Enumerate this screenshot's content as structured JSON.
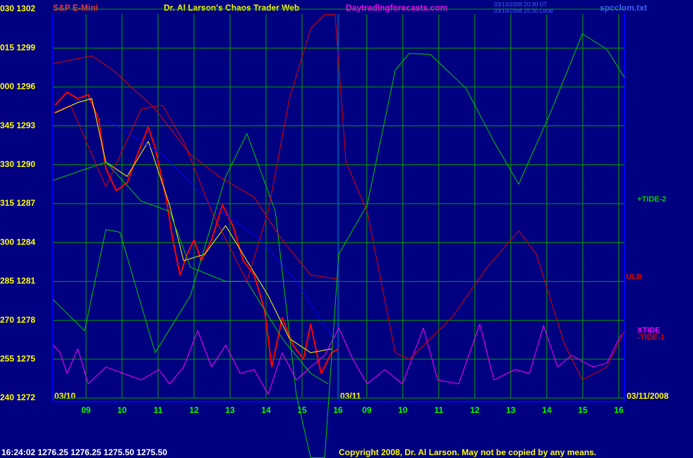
{
  "chart_data": {
    "type": "line",
    "title": "Dr. Al Larson's Chaos Trader Web",
    "header": {
      "symbol": "S&P E-Mini",
      "site": "Daytradingforecasts.com",
      "time_ut": "03/10/2008 20:30 UT",
      "time_local": "03/10/2008 15:30 Local",
      "file": "spcclom.txt"
    },
    "annotations": [
      "03/10",
      "03/11",
      "03/11/2008"
    ],
    "status": "16:24:02  1276.25 1276.25 1275.50 1275.50",
    "copyright": "Copyright 2008, Dr. Al Larson. May not be copied by any means.",
    "xlim": [
      8.08,
      23.96
    ],
    "xticks": [
      {
        "value": 9,
        "label": "09"
      },
      10,
      11,
      12,
      13,
      14,
      15,
      16,
      {
        "value": 16.8,
        "label": "09"
      },
      {
        "value": 17.8,
        "label": "10"
      },
      {
        "value": 18.8,
        "label": "11"
      },
      {
        "value": 19.8,
        "label": "12"
      },
      {
        "value": 20.8,
        "label": "13"
      },
      {
        "value": 21.8,
        "label": "14"
      },
      {
        "value": 22.8,
        "label": "15"
      },
      {
        "value": 23.8,
        "label": "16"
      }
    ],
    "ylim": [
      1272,
      1302
    ],
    "yticks": [
      {
        "value": 1302,
        "label": "030 1302"
      },
      {
        "value": 1299,
        "label": "015 1299"
      },
      {
        "value": 1296,
        "label": "000 1296"
      },
      {
        "value": 1293,
        "label": "345 1293"
      },
      {
        "value": 1290,
        "label": "330 1290"
      },
      {
        "value": 1287,
        "label": "315 1287"
      },
      {
        "value": 1284,
        "label": "300 1284"
      },
      {
        "value": 1281,
        "label": "285 1281"
      },
      {
        "value": 1278,
        "label": "270 1278"
      },
      {
        "value": 1275,
        "label": "255 1275"
      },
      {
        "value": 1272,
        "label": "240 1272"
      }
    ],
    "grid": true,
    "series": [
      {
        "color": "#ff0000",
        "x": [
          8.14,
          8.47,
          8.77,
          9.06,
          9.35,
          9.55,
          9.84,
          10.14,
          10.43,
          10.73,
          10.92,
          11.22,
          11.41,
          11.61,
          11.81,
          12.0,
          12.2,
          12.49,
          12.79,
          13.08,
          13.37,
          13.67,
          13.96,
          14.16,
          14.45,
          14.75,
          15.04,
          15.24,
          15.53,
          15.82,
          16.02
        ],
        "values": [
          1294.6,
          1295.6,
          1295.1,
          1295.4,
          1293.5,
          1289.7,
          1288.0,
          1288.6,
          1290.8,
          1292.9,
          1291.3,
          1287.5,
          1284.2,
          1281.5,
          1283.1,
          1284.2,
          1282.6,
          1284.2,
          1286.9,
          1285.3,
          1282.6,
          1281.5,
          1278.8,
          1274.4,
          1278.2,
          1276.1,
          1275.0,
          1277.7,
          1273.9,
          1275.5,
          1275.8
        ]
      },
      {
        "color": "#ffff00",
        "x": [
          8.14,
          8.77,
          9.16,
          9.55,
          10.14,
          10.73,
          11.32,
          11.71,
          12.3,
          12.88,
          13.47,
          14.06,
          14.65,
          15.24,
          15.82
        ],
        "values": [
          1294.0,
          1294.8,
          1295.1,
          1290.2,
          1289.1,
          1291.8,
          1286.9,
          1282.6,
          1283.1,
          1285.3,
          1282.6,
          1279.9,
          1276.6,
          1275.5,
          1275.8
        ]
      },
      {
        "color": "#0000ff",
        "x": [
          9.55,
          11.12,
          12.49,
          13.86,
          14.84,
          15.98
        ],
        "values": [
          1293.5,
          1290.8,
          1286.9,
          1284.2,
          1281.0,
          1276.1
        ]
      },
      {
        "name": "+TIDE-2",
        "color": "#00cc00",
        "x": [
          8.08,
          8.96,
          9.55,
          9.94,
          10.92,
          11.9,
          12.88,
          13.47,
          14.26,
          14.84,
          15.24,
          15.63,
          16.02,
          16.81,
          17.59,
          17.98,
          18.57,
          19.55,
          20.33,
          21.02,
          21.9,
          22.79,
          23.47,
          23.96
        ],
        "values": [
          1279.6,
          1277.2,
          1285.0,
          1284.8,
          1275.5,
          1279.9,
          1289.1,
          1292.4,
          1286.4,
          1272.3,
          1267.4,
          1267.4,
          1283.1,
          1286.9,
          1297.3,
          1298.6,
          1298.5,
          1295.9,
          1291.8,
          1288.5,
          1294.0,
          1300.1,
          1298.9,
          1296.7
        ]
      },
      {
        "color": "#00cc00",
        "x": [
          8.08,
          9.55,
          10.53,
          11.32,
          11.9,
          12.88,
          13.47,
          14.45,
          15.24,
          15.73
        ],
        "values": [
          1288.8,
          1290.2,
          1287.2,
          1286.4,
          1282.1,
          1281.0,
          1281.0,
          1276.6,
          1273.9,
          1273.1
        ]
      },
      {
        "name": "ULB",
        "color": "#e00000",
        "x": [
          8.08,
          9.16,
          9.75,
          10.92,
          11.9,
          12.69,
          13.67,
          14.45,
          15.24,
          15.98
        ],
        "values": [
          1297.8,
          1298.4,
          1297.3,
          1294.3,
          1290.8,
          1289.1,
          1287.5,
          1284.2,
          1281.5,
          1281.2
        ]
      },
      {
        "name": "XTIDE",
        "color": "#ff00ff",
        "x": [
          8.08,
          8.28,
          8.47,
          8.77,
          9.06,
          9.55,
          10.04,
          10.53,
          11.02,
          11.32,
          11.71,
          12.1,
          12.49,
          12.88,
          13.28,
          13.67,
          14.06,
          14.45,
          14.84,
          15.24,
          15.63,
          16.02,
          16.41,
          16.81,
          17.3,
          17.79,
          18.37,
          18.77,
          19.35,
          19.94,
          20.33,
          20.92,
          21.32,
          21.71,
          22.1,
          22.49,
          23.08,
          23.47,
          23.86
        ],
        "values": [
          1276.1,
          1275.5,
          1273.9,
          1275.8,
          1273.1,
          1274.4,
          1273.9,
          1273.4,
          1274.2,
          1273.1,
          1274.4,
          1277.2,
          1274.4,
          1276.1,
          1273.9,
          1274.2,
          1272.3,
          1275.5,
          1273.4,
          1274.4,
          1275.3,
          1277.4,
          1275.0,
          1273.1,
          1274.2,
          1273.1,
          1277.4,
          1273.4,
          1273.1,
          1277.7,
          1273.4,
          1274.2,
          1273.9,
          1277.6,
          1274.4,
          1275.3,
          1274.4,
          1274.7,
          1276.9
        ]
      },
      {
        "name": "-TIDE-1",
        "color": "#e00000",
        "x": [
          8.08,
          8.57,
          9.55,
          10.53,
          11.12,
          11.71,
          12.49,
          13.47,
          14.06,
          14.65,
          15.24,
          15.63,
          15.92,
          16.22,
          16.81,
          17.59,
          17.98,
          19.16,
          20.14,
          21.02,
          21.51,
          22.3,
          22.79,
          23.47,
          23.96
        ],
        "values": [
          1294.0,
          1294.6,
          1288.3,
          1294.3,
          1294.6,
          1291.8,
          1286.4,
          1281.0,
          1286.4,
          1295.1,
          1300.5,
          1301.6,
          1301.6,
          1290.2,
          1286.4,
          1275.5,
          1275.0,
          1278.2,
          1282.1,
          1284.9,
          1283.1,
          1276.1,
          1273.4,
          1274.4,
          1277.2
        ]
      }
    ]
  }
}
